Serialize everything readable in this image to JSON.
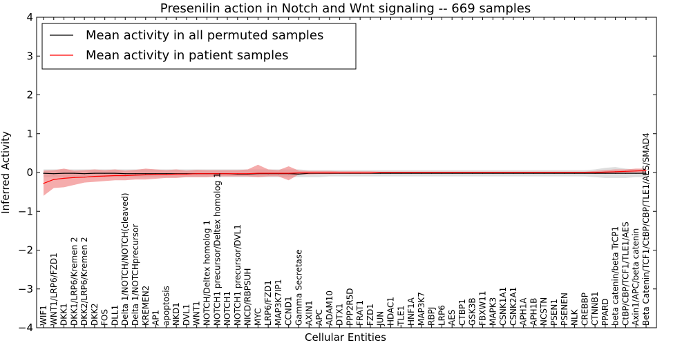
{
  "chart_data": {
    "type": "line",
    "title": "Presenilin action in Notch and Wnt signaling -- 669 samples",
    "xlabel": "Cellular Entities",
    "ylabel": "Inferred Activity",
    "ylim": [
      -4,
      4
    ],
    "yticks": [
      -4,
      -3,
      -2,
      -1,
      0,
      1,
      2,
      3,
      4
    ],
    "ytick_labels": [
      "−4",
      "−3",
      "−2",
      "−1",
      "0",
      "1",
      "2",
      "3",
      "4"
    ],
    "grid": false,
    "legend_position": "top-left",
    "categories": [
      "WIF1",
      "WNT1/LRP6/FZD1",
      "DKK1",
      "DKK1/LRP6/Kremen 2",
      "DKK2/LRP6/Kremen 2",
      "DKK2",
      "FOS",
      "DLL1",
      "Delta 1/NOTCH/NOTCH(cleaved)",
      "Delta 1/NOTCHprecursor",
      "KREMEN2",
      "AP1",
      "apoptosis",
      "NKD1",
      "DVL1",
      "WNT1",
      "NOTCH/Deltex homolog 1",
      "NOTCH1 precursor/Deltex homolog 1",
      "NOTCH1",
      "NOTCH1 precursor/DVL1",
      "NICD/RBPSUH",
      "MYC",
      "LRP6/FZD1",
      "MAP3K7IP1",
      "CCND1",
      "Gamma Secretase",
      "AXIN1",
      "APC",
      "ADAM10",
      "DTX1",
      "PPP2R5D",
      "FRAT1",
      "FZD1",
      "JUN",
      "HDAC1",
      "TLE1",
      "HNF1A",
      "MAP3K7",
      "RBPJ",
      "LRP6",
      "AES",
      "CTBP1",
      "GSK3B",
      "FBXW11",
      "MAPK3",
      "CSNK1A1",
      "CSNK2A1",
      "APH1A",
      "APH1B",
      "NCSTN",
      "PSEN1",
      "PSENEN",
      "NLK",
      "CREBBP",
      "CTNNB1",
      "PPARD",
      "beta catenin/beta TrCP1",
      "CtBP/CBP/TCF1/TLE1/AES",
      "Axin1/APC/beta catenin",
      "Beta Catenin/TCF1/CtBP/CBP/TLE1/AES/SMAD4"
    ],
    "series": [
      {
        "name": "Mean activity in all permuted samples",
        "color": "#000000",
        "band_color": "#c8c8c8",
        "values": [
          -0.02,
          -0.03,
          -0.02,
          -0.02,
          -0.03,
          -0.02,
          -0.02,
          -0.02,
          -0.03,
          -0.03,
          -0.03,
          -0.03,
          -0.03,
          -0.03,
          -0.03,
          -0.03,
          -0.03,
          -0.03,
          -0.03,
          -0.04,
          -0.04,
          -0.03,
          -0.03,
          -0.03,
          -0.03,
          -0.04,
          -0.02,
          -0.02,
          -0.02,
          -0.02,
          -0.02,
          -0.02,
          -0.02,
          -0.02,
          -0.02,
          -0.02,
          -0.02,
          -0.02,
          -0.02,
          -0.02,
          -0.02,
          -0.02,
          -0.02,
          -0.02,
          -0.02,
          -0.02,
          -0.02,
          -0.02,
          -0.02,
          -0.02,
          -0.02,
          -0.02,
          -0.02,
          -0.02,
          -0.02,
          -0.02,
          -0.02,
          -0.02,
          -0.02,
          -0.02
        ],
        "lower": [
          -0.12,
          -0.12,
          -0.12,
          -0.12,
          -0.12,
          -0.12,
          -0.12,
          -0.12,
          -0.12,
          -0.12,
          -0.12,
          -0.12,
          -0.12,
          -0.12,
          -0.12,
          -0.12,
          -0.12,
          -0.12,
          -0.12,
          -0.12,
          -0.12,
          -0.12,
          -0.12,
          -0.12,
          -0.12,
          -0.12,
          -0.12,
          -0.12,
          -0.1,
          -0.1,
          -0.1,
          -0.1,
          -0.1,
          -0.1,
          -0.1,
          -0.1,
          -0.1,
          -0.1,
          -0.1,
          -0.1,
          -0.1,
          -0.1,
          -0.1,
          -0.1,
          -0.1,
          -0.1,
          -0.1,
          -0.1,
          -0.1,
          -0.1,
          -0.1,
          -0.1,
          -0.1,
          -0.1,
          -0.12,
          -0.14,
          -0.14,
          -0.14,
          -0.12,
          -0.12
        ],
        "upper": [
          0.08,
          0.08,
          0.08,
          0.08,
          0.08,
          0.08,
          0.08,
          0.08,
          0.08,
          0.08,
          0.08,
          0.08,
          0.08,
          0.08,
          0.08,
          0.08,
          0.08,
          0.08,
          0.08,
          0.08,
          0.08,
          0.08,
          0.08,
          0.08,
          0.08,
          0.08,
          0.06,
          0.06,
          0.06,
          0.06,
          0.06,
          0.06,
          0.06,
          0.06,
          0.06,
          0.06,
          0.06,
          0.06,
          0.06,
          0.06,
          0.06,
          0.06,
          0.06,
          0.06,
          0.06,
          0.06,
          0.06,
          0.06,
          0.06,
          0.06,
          0.06,
          0.06,
          0.06,
          0.06,
          0.08,
          0.12,
          0.14,
          0.1,
          0.08,
          0.08
        ]
      },
      {
        "name": "Mean activity in patient samples",
        "color": "#ff0000",
        "band_color": "#f08080",
        "values": [
          -0.28,
          -0.18,
          -0.15,
          -0.13,
          -0.12,
          -0.1,
          -0.09,
          -0.08,
          -0.08,
          -0.07,
          -0.06,
          -0.05,
          -0.05,
          -0.04,
          -0.04,
          -0.03,
          -0.03,
          -0.03,
          -0.03,
          -0.03,
          -0.03,
          -0.02,
          -0.02,
          -0.02,
          -0.02,
          -0.01,
          -0.01,
          -0.01,
          -0.01,
          -0.01,
          -0.01,
          -0.01,
          -0.01,
          0.0,
          0.0,
          0.0,
          0.0,
          0.0,
          0.0,
          0.0,
          0.0,
          0.0,
          0.0,
          0.0,
          0.0,
          0.0,
          0.0,
          0.0,
          0.0,
          0.0,
          0.0,
          0.0,
          0.0,
          0.0,
          0.0,
          0.01,
          0.02,
          0.03,
          0.04,
          0.05
        ],
        "lower": [
          -0.6,
          -0.4,
          -0.38,
          -0.32,
          -0.26,
          -0.24,
          -0.22,
          -0.2,
          -0.2,
          -0.18,
          -0.18,
          -0.16,
          -0.14,
          -0.14,
          -0.12,
          -0.12,
          -0.12,
          -0.1,
          -0.1,
          -0.1,
          -0.1,
          -0.12,
          -0.1,
          -0.1,
          -0.2,
          -0.05,
          -0.05,
          -0.04,
          -0.04,
          -0.03,
          -0.03,
          -0.03,
          -0.03,
          -0.02,
          -0.02,
          -0.02,
          -0.02,
          -0.02,
          -0.02,
          -0.02,
          -0.02,
          -0.02,
          -0.02,
          -0.02,
          -0.02,
          -0.02,
          -0.02,
          -0.02,
          -0.02,
          -0.02,
          -0.02,
          -0.02,
          -0.02,
          -0.02,
          -0.03,
          -0.02,
          -0.01,
          -0.01,
          0.0,
          0.0
        ],
        "upper": [
          0.05,
          0.06,
          0.1,
          0.05,
          0.06,
          0.08,
          0.06,
          0.08,
          0.05,
          0.07,
          0.1,
          0.08,
          0.06,
          0.08,
          0.05,
          0.07,
          0.06,
          0.06,
          0.06,
          0.06,
          0.08,
          0.2,
          0.08,
          0.06,
          0.16,
          0.05,
          0.04,
          0.04,
          0.04,
          0.03,
          0.03,
          0.03,
          0.03,
          0.02,
          0.02,
          0.02,
          0.02,
          0.02,
          0.02,
          0.02,
          0.02,
          0.02,
          0.02,
          0.02,
          0.02,
          0.02,
          0.02,
          0.02,
          0.02,
          0.02,
          0.02,
          0.02,
          0.02,
          0.02,
          0.04,
          0.06,
          0.08,
          0.08,
          0.1,
          0.1
        ]
      }
    ]
  }
}
